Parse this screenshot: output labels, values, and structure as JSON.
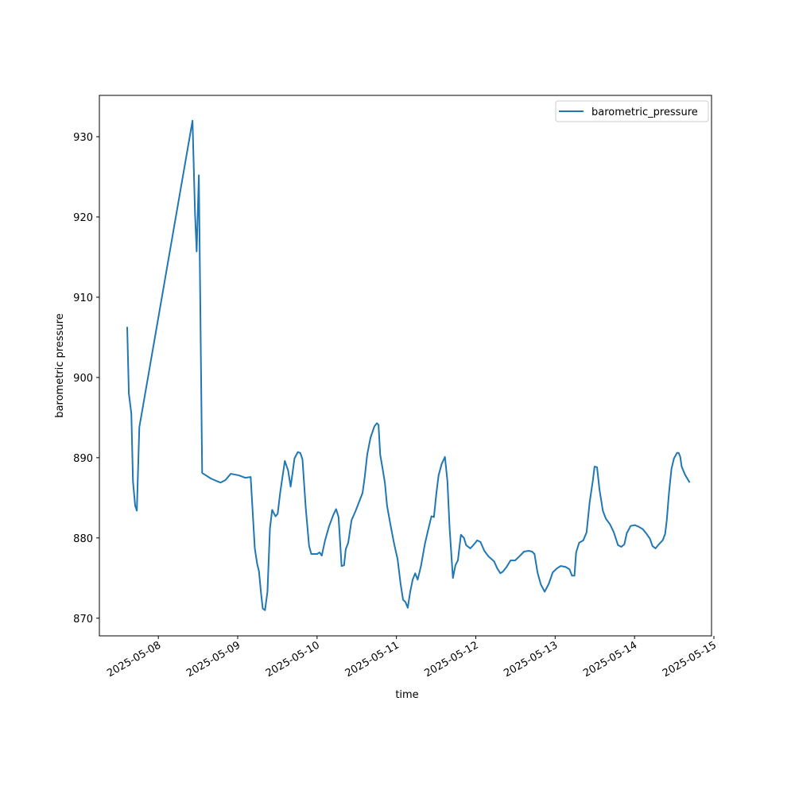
{
  "chart_data": {
    "type": "line",
    "x_label": "time",
    "y_label": "barometric pressure",
    "x": [
      "2025-05-07T14:35",
      "2025-05-07T15:05",
      "2025-05-07T15:50",
      "2025-05-07T16:20",
      "2025-05-07T17:00",
      "2025-05-07T17:30",
      "2025-05-07T18:15",
      "2025-05-08T10:20",
      "2025-05-08T11:05",
      "2025-05-08T11:35",
      "2025-05-08T12:15",
      "2025-05-08T13:15",
      "2025-05-08T15:55",
      "2025-05-08T17:35",
      "2025-05-08T18:50",
      "2025-05-08T20:15",
      "2025-05-08T21:55",
      "2025-05-09T00:20",
      "2025-05-09T02:15",
      "2025-05-09T03:55",
      "2025-05-09T05:10",
      "2025-05-09T05:55",
      "2025-05-09T06:25",
      "2025-05-09T07:05",
      "2025-05-09T07:35",
      "2025-05-09T08:15",
      "2025-05-09T09:00",
      "2025-05-09T09:45",
      "2025-05-09T10:25",
      "2025-05-09T11:25",
      "2025-05-09T12:05",
      "2025-05-09T12:50",
      "2025-05-09T14:15",
      "2025-05-09T15:15",
      "2025-05-09T16:00",
      "2025-05-09T16:25",
      "2025-05-09T17:10",
      "2025-05-09T18:10",
      "2025-05-09T18:55",
      "2025-05-09T19:35",
      "2025-05-09T20:35",
      "2025-05-09T21:35",
      "2025-05-09T22:15",
      "2025-05-10T00:00",
      "2025-05-10T00:45",
      "2025-05-10T01:25",
      "2025-05-10T02:25",
      "2025-05-10T03:35",
      "2025-05-10T04:50",
      "2025-05-10T05:45",
      "2025-05-10T06:30",
      "2025-05-10T07:25",
      "2025-05-10T08:10",
      "2025-05-10T08:40",
      "2025-05-10T09:25",
      "2025-05-10T10:25",
      "2025-05-10T11:35",
      "2025-05-10T13:45",
      "2025-05-10T14:25",
      "2025-05-10T15:10",
      "2025-05-10T16:10",
      "2025-05-10T17:20",
      "2025-05-10T18:05",
      "2025-05-10T18:35",
      "2025-05-10T19:05",
      "2025-05-10T19:45",
      "2025-05-10T20:30",
      "2025-05-10T21:10",
      "2025-05-10T22:10",
      "2025-05-10T23:20",
      "2025-05-11T00:20",
      "2025-05-11T01:15",
      "2025-05-11T02:00",
      "2025-05-11T02:45",
      "2025-05-11T03:25",
      "2025-05-11T04:10",
      "2025-05-11T04:55",
      "2025-05-11T05:40",
      "2025-05-11T06:25",
      "2025-05-11T07:25",
      "2025-05-11T08:35",
      "2025-05-11T09:35",
      "2025-05-11T10:35",
      "2025-05-11T11:20",
      "2025-05-11T12:05",
      "2025-05-11T12:45",
      "2025-05-11T13:40",
      "2025-05-11T14:40",
      "2025-05-11T15:25",
      "2025-05-11T16:05",
      "2025-05-11T17:05",
      "2025-05-11T17:50",
      "2025-05-11T18:35",
      "2025-05-11T19:30",
      "2025-05-11T20:25",
      "2025-05-11T21:05",
      "2025-05-11T22:20",
      "2025-05-11T23:15",
      "2025-05-12T00:25",
      "2025-05-12T01:25",
      "2025-05-12T02:35",
      "2025-05-12T03:50",
      "2025-05-12T05:30",
      "2025-05-12T06:30",
      "2025-05-12T07:25",
      "2025-05-12T08:10",
      "2025-05-12T09:20",
      "2025-05-12T10:30",
      "2025-05-12T11:55",
      "2025-05-12T13:10",
      "2025-05-12T14:35",
      "2025-05-12T16:00",
      "2025-05-12T17:00",
      "2025-05-12T17:45",
      "2025-05-12T18:40",
      "2025-05-12T19:40",
      "2025-05-12T20:50",
      "2025-05-12T22:05",
      "2025-05-12T23:15",
      "2025-05-13T00:30",
      "2025-05-13T01:40",
      "2025-05-13T03:05",
      "2025-05-13T04:20",
      "2025-05-13T05:05",
      "2025-05-13T05:50",
      "2025-05-13T06:20",
      "2025-05-13T07:15",
      "2025-05-13T08:30",
      "2025-05-13T09:30",
      "2025-05-13T10:25",
      "2025-05-13T11:25",
      "2025-05-13T11:55",
      "2025-05-13T12:40",
      "2025-05-13T13:25",
      "2025-05-13T14:25",
      "2025-05-13T15:20",
      "2025-05-13T16:35",
      "2025-05-13T17:45",
      "2025-05-13T19:00",
      "2025-05-13T20:00",
      "2025-05-13T20:55",
      "2025-05-13T21:40",
      "2025-05-13T22:50",
      "2025-05-14T00:05",
      "2025-05-14T01:15",
      "2025-05-14T02:30",
      "2025-05-14T03:40",
      "2025-05-14T04:40",
      "2025-05-14T05:25",
      "2025-05-14T06:20",
      "2025-05-14T07:20",
      "2025-05-14T08:30",
      "2025-05-14T09:15",
      "2025-05-14T09:45",
      "2025-05-14T10:25",
      "2025-05-14T11:10",
      "2025-05-14T11:55",
      "2025-05-14T12:50",
      "2025-05-14T13:20",
      "2025-05-14T13:50",
      "2025-05-14T14:15",
      "2025-05-14T15:15",
      "2025-05-14T16:40"
    ],
    "series": [
      {
        "name": "barometric_pressure",
        "color": "#1f77b4",
        "values": [
          906.3,
          898.0,
          895.5,
          887.0,
          884.0,
          883.4,
          893.8,
          932.0,
          920.5,
          915.7,
          925.2,
          888.1,
          887.4,
          887.1,
          886.9,
          887.2,
          888.0,
          887.8,
          887.5,
          887.6,
          878.7,
          876.7,
          875.9,
          873.0,
          871.2,
          871.0,
          873.3,
          881.2,
          883.5,
          882.7,
          883.0,
          885.6,
          889.6,
          888.4,
          886.4,
          887.6,
          889.9,
          890.7,
          890.6,
          889.8,
          883.7,
          879.0,
          878.0,
          878.0,
          878.2,
          877.8,
          879.7,
          881.4,
          882.8,
          883.6,
          882.6,
          876.5,
          876.6,
          878.6,
          879.4,
          882.2,
          883.3,
          885.6,
          887.6,
          890.4,
          892.5,
          893.9,
          894.3,
          894.1,
          890.4,
          888.8,
          886.9,
          884.0,
          881.7,
          879.2,
          877.4,
          874.3,
          872.3,
          872.0,
          871.3,
          873.3,
          874.8,
          875.6,
          874.8,
          876.5,
          879.2,
          881.0,
          882.7,
          882.6,
          885.6,
          887.8,
          889.2,
          890.1,
          887.1,
          881.2,
          875.0,
          876.6,
          877.2,
          880.4,
          880.0,
          879.1,
          878.7,
          879.1,
          879.7,
          879.5,
          878.4,
          877.7,
          877.1,
          876.2,
          875.6,
          875.8,
          876.4,
          877.2,
          877.2,
          877.7,
          878.3,
          878.4,
          878.3,
          878.0,
          875.7,
          874.2,
          873.3,
          874.3,
          875.7,
          876.2,
          876.5,
          876.4,
          876.1,
          875.3,
          875.3,
          878.2,
          879.4,
          879.7,
          880.7,
          884.4,
          887.2,
          888.9,
          888.8,
          886.0,
          883.4,
          882.4,
          881.7,
          880.7,
          879.1,
          878.9,
          879.2,
          880.6,
          881.5,
          881.6,
          881.4,
          881.1,
          880.5,
          879.9,
          879.0,
          878.7,
          879.2,
          879.7,
          880.5,
          882.2,
          885.6,
          888.6,
          889.9,
          890.6,
          890.6,
          890.1,
          888.9,
          887.9,
          886.9
        ]
      }
    ],
    "xlim": [
      "2025-05-07T06:10",
      "2025-05-14T23:17"
    ],
    "xticks": [
      "2025-05-08",
      "2025-05-09",
      "2025-05-10",
      "2025-05-11",
      "2025-05-12",
      "2025-05-13",
      "2025-05-14",
      "2025-05-15"
    ],
    "ylim": [
      867.8,
      935.15
    ],
    "yticks": [
      870,
      880,
      890,
      900,
      910,
      920,
      930
    ],
    "legend": "upper right"
  }
}
